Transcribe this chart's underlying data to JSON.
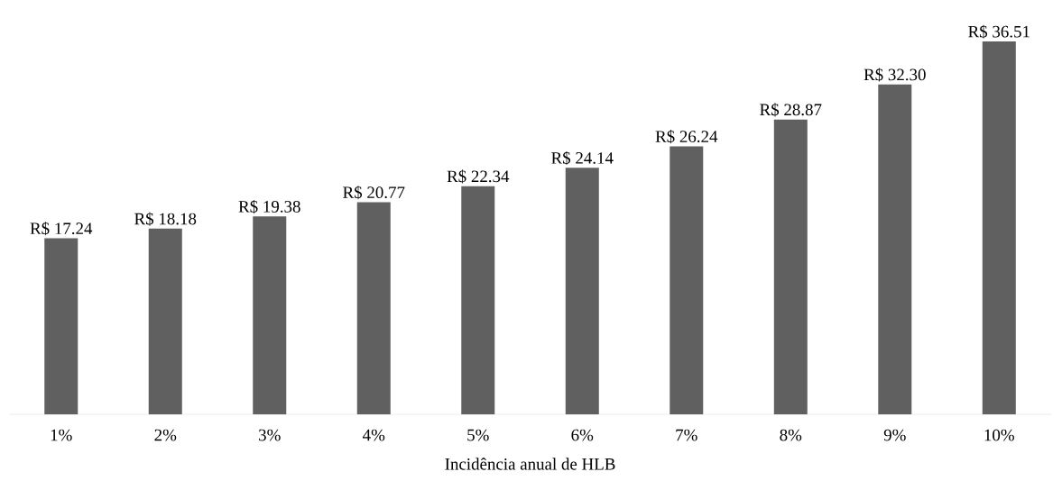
{
  "chart_data": {
    "type": "bar",
    "xlabel": "Incidência anual de HLB",
    "categories": [
      "1%",
      "2%",
      "3%",
      "4%",
      "5%",
      "6%",
      "7%",
      "8%",
      "9%",
      "10%"
    ],
    "values": [
      17.24,
      18.18,
      19.38,
      20.77,
      22.34,
      24.14,
      26.24,
      28.87,
      32.3,
      36.51
    ],
    "value_labels": [
      "R$ 17.24",
      "R$ 18.18",
      "R$ 19.38",
      "R$ 20.77",
      "R$ 22.34",
      "R$ 24.14",
      "R$ 26.24",
      "R$ 28.87",
      "R$ 32.30",
      "R$ 36.51"
    ],
    "color": "#606060"
  }
}
